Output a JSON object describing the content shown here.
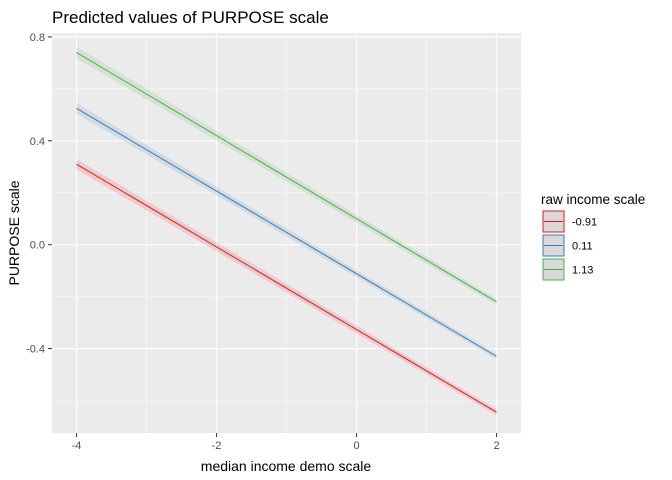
{
  "chart_data": {
    "type": "line",
    "title": "Predicted values of PURPOSE scale",
    "xlabel": "median income demo scale",
    "ylabel": "PURPOSE scale",
    "xlim": [
      -4.35,
      2.35
    ],
    "ylim": [
      -0.725,
      0.815
    ],
    "x_ticks": [
      -4,
      -2,
      0,
      2
    ],
    "x_tick_labels": [
      "-4",
      "-2",
      "0",
      "2"
    ],
    "y_ticks": [
      -0.4,
      0.0,
      0.4,
      0.8
    ],
    "y_tick_labels": [
      "-0.4",
      "0.0",
      "0.4",
      "0.8"
    ],
    "grid": true,
    "legend": {
      "title": "raw income scale",
      "position": "right"
    },
    "series": [
      {
        "name": "-0.91",
        "color": "#e41a1c",
        "x": [
          -4,
          2
        ],
        "y": [
          0.31,
          -0.645
        ],
        "ci_halfwidth": [
          0.02,
          0.012
        ]
      },
      {
        "name": "0.11",
        "color": "#377eb8",
        "x": [
          -4,
          2
        ],
        "y": [
          0.525,
          -0.43
        ],
        "ci_halfwidth": [
          0.02,
          0.01
        ]
      },
      {
        "name": "1.13",
        "color": "#4daf4a",
        "x": [
          -4,
          2
        ],
        "y": [
          0.74,
          -0.22
        ],
        "ci_halfwidth": [
          0.022,
          0.012
        ]
      }
    ]
  }
}
